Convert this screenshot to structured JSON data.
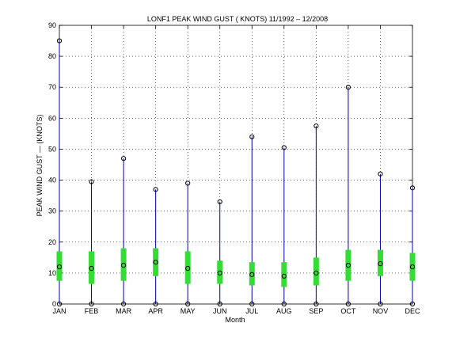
{
  "chart_data": {
    "type": "boxplot",
    "title": "LONF1  PEAK WIND GUST ( KNOTS) 11/1992 – 12/2008",
    "xlabel": "Month",
    "ylabel": "PEAK WIND GUST  —  (KNOTS)",
    "categories": [
      "JAN",
      "FEB",
      "MAR",
      "APR",
      "MAY",
      "JUN",
      "JUL",
      "AUG",
      "SEP",
      "OCT",
      "NOV",
      "DEC"
    ],
    "ylim": [
      0,
      90
    ],
    "yticks": [
      0,
      10,
      20,
      30,
      40,
      50,
      60,
      70,
      80,
      90
    ],
    "grid": true,
    "max": [
      85,
      39.5,
      47,
      37,
      39,
      33,
      54,
      50.5,
      57.5,
      70,
      42,
      37.5
    ],
    "min": [
      0,
      0,
      0,
      0,
      0,
      0,
      0,
      0,
      0,
      0,
      0,
      0
    ],
    "median": [
      12,
      11.5,
      12.5,
      13.5,
      11.5,
      10,
      9.5,
      9,
      10,
      12.5,
      13,
      12
    ],
    "q1": [
      7.5,
      6.5,
      7.5,
      9,
      6.5,
      6.5,
      6,
      5.5,
      6,
      7.5,
      9,
      7.5
    ],
    "q3": [
      17,
      17,
      18,
      18,
      17,
      14,
      13.5,
      13.5,
      15,
      17.5,
      17.5,
      16.5
    ],
    "colors": {
      "whisker": "#0000b8",
      "box": "#33dd33",
      "marker": "#000000",
      "grid": "#000000"
    }
  }
}
